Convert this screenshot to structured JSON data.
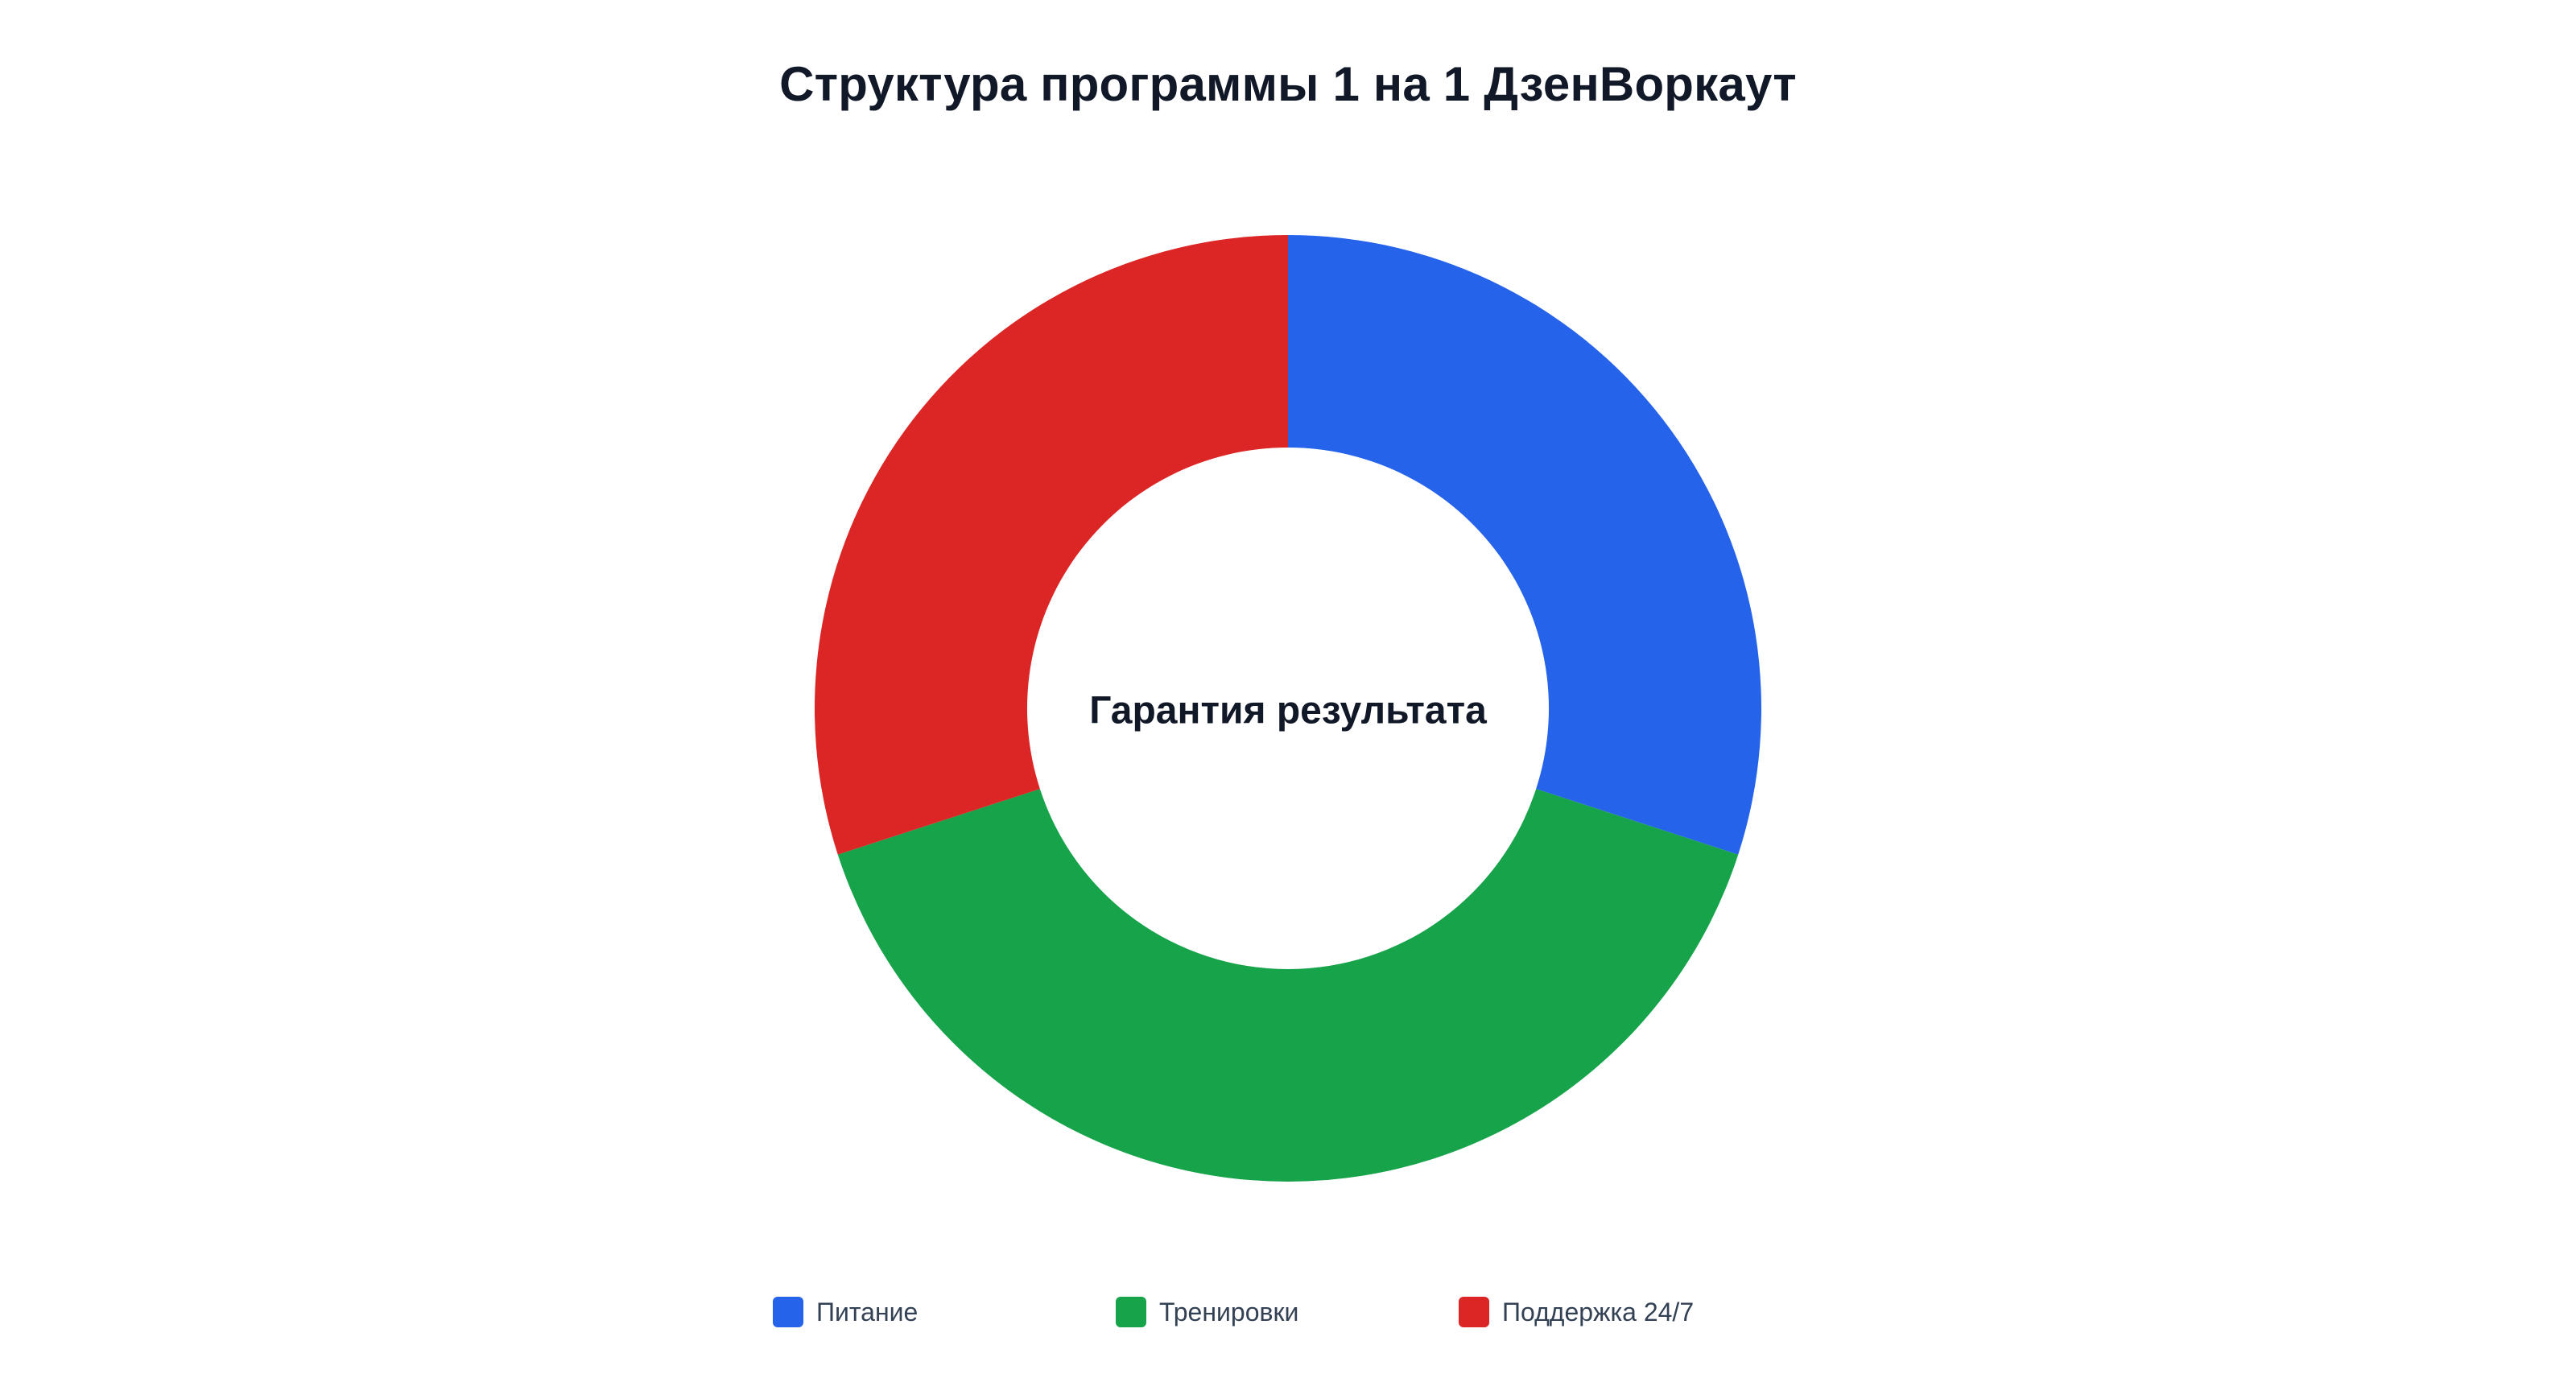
{
  "chart_data": {
    "type": "pie",
    "variant": "donut",
    "title": "Структура программы 1 на 1 ДзенВоркаут",
    "center_label": "Гарантия результата",
    "categories": [
      "Питание",
      "Тренировки",
      "Поддержка 24/7"
    ],
    "values": [
      30,
      40,
      30
    ],
    "colors": [
      "#2563eb",
      "#16a34a",
      "#dc2626"
    ],
    "legend_position": "bottom"
  }
}
